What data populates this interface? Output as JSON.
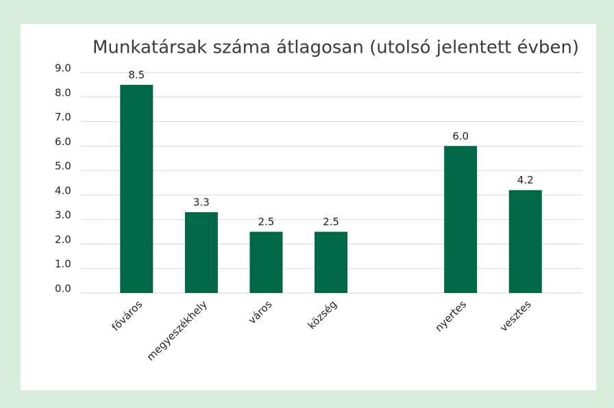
{
  "chart_data": {
    "type": "bar",
    "title": "Munkatársak száma átlagosan (utolsó jelentett évben)",
    "categories": [
      "főváros",
      "megyeszékhely",
      "város",
      "község",
      null,
      "nyertes",
      "vesztes"
    ],
    "values": [
      8.5,
      3.3,
      2.5,
      2.5,
      null,
      6.0,
      4.2
    ],
    "value_labels": [
      "8.5",
      "3.3",
      "2.5",
      "2.5",
      null,
      "6.0",
      "4.2"
    ],
    "color": "#006747",
    "ylim": [
      0,
      9
    ],
    "yticks": [
      {
        "value": 0,
        "label": "0.0"
      },
      {
        "value": 1,
        "label": "1.0"
      },
      {
        "value": 2,
        "label": "2.0"
      },
      {
        "value": 3,
        "label": "3.0"
      },
      {
        "value": 4,
        "label": "4.0"
      },
      {
        "value": 5,
        "label": "5.0"
      },
      {
        "value": 6,
        "label": "6.0"
      },
      {
        "value": 7,
        "label": "7.0"
      },
      {
        "value": 8,
        "label": "8.0"
      },
      {
        "value": 9,
        "label": "9.0"
      }
    ],
    "grid": true
  }
}
